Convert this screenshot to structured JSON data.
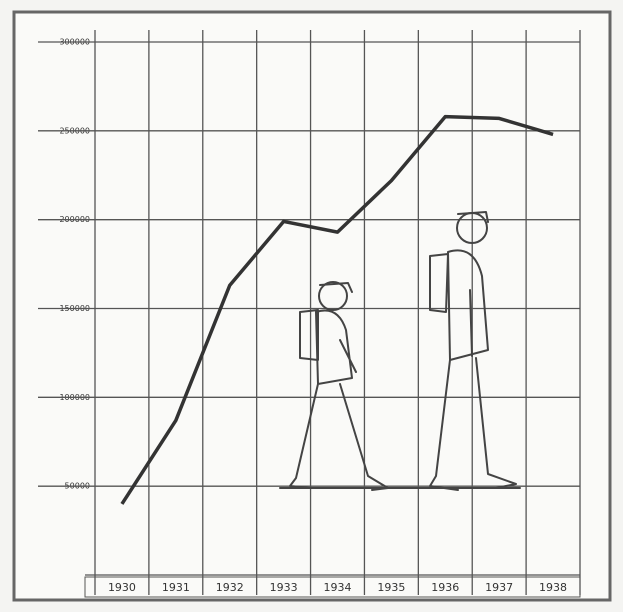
{
  "chart_data": {
    "type": "line",
    "categories": [
      "1930",
      "1931",
      "1932",
      "1933",
      "1934",
      "1935",
      "1936",
      "1937",
      "1938"
    ],
    "values": [
      40000,
      87000,
      163000,
      199000,
      193000,
      222000,
      258000,
      257000,
      248000
    ],
    "color": "#333333",
    "ylim": [
      0,
      300000
    ],
    "yticks": [
      50000,
      100000,
      150000,
      200000,
      250000,
      300000
    ],
    "grid": true
  }
}
